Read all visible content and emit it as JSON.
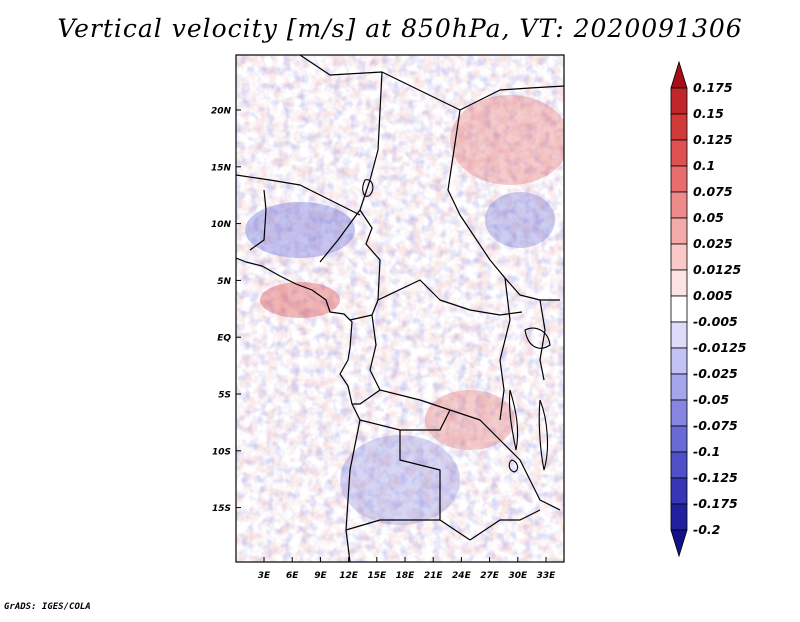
{
  "title": "Vertical velocity [m/s] at 850hPa, VT: 2020091306",
  "footer": "GrADS: IGES/COLA",
  "axes": {
    "lat_labels": [
      "20N",
      "15N",
      "10N",
      "5N",
      "EQ",
      "5S",
      "10S",
      "15S"
    ],
    "lon_labels": [
      "3E",
      "6E",
      "9E",
      "12E",
      "15E",
      "18E",
      "21E",
      "24E",
      "27E",
      "30E",
      "33E"
    ]
  },
  "colorbar": {
    "labels": [
      "0.175",
      "0.15",
      "0.125",
      "0.1",
      "0.075",
      "0.05",
      "0.025",
      "0.0125",
      "0.005",
      "-0.005",
      "-0.0125",
      "-0.025",
      "-0.05",
      "-0.075",
      "-0.1",
      "-0.125",
      "-0.175",
      "-0.2"
    ],
    "colors": [
      "#a50f15",
      "#c1262b",
      "#d23a3a",
      "#e05252",
      "#e86d6d",
      "#ef8a8a",
      "#f5aaaa",
      "#f9c8c8",
      "#fde3e3",
      "#ffffff",
      "#dcdcfa",
      "#c2c2f4",
      "#a5a5ec",
      "#8686e2",
      "#6a6ad6",
      "#4f4fc8",
      "#3636b6",
      "#2020a0",
      "#140f8a"
    ]
  }
}
